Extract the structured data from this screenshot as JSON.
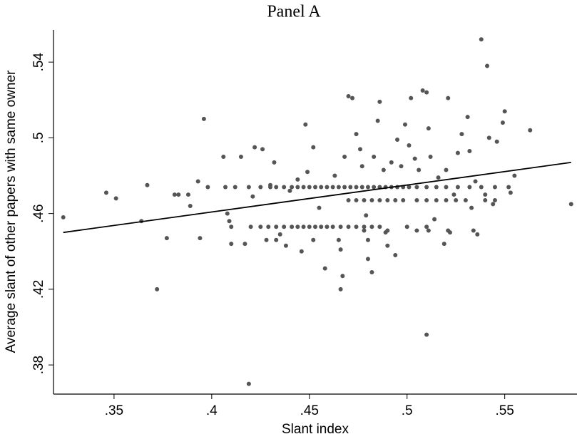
{
  "chart_data": {
    "type": "scatter",
    "title": "Panel A",
    "x_label": "Slant index",
    "y_label": "Average slant of other papers with same owner",
    "xlim": [
      0.319,
      0.587
    ],
    "ylim": [
      0.3646,
      0.557
    ],
    "xticks": [
      {
        "value": 0.35,
        "label": ".35"
      },
      {
        "value": 0.4,
        "label": ".4"
      },
      {
        "value": 0.45,
        "label": ".45"
      },
      {
        "value": 0.5,
        "label": ".5"
      },
      {
        "value": 0.55,
        "label": ".55"
      }
    ],
    "yticks": [
      {
        "value": 0.38,
        "label": ".38"
      },
      {
        "value": 0.42,
        "label": ".42"
      },
      {
        "value": 0.46,
        "label": ".46"
      },
      {
        "value": 0.5,
        "label": ".5"
      },
      {
        "value": 0.54,
        "label": ".54"
      }
    ],
    "series": [
      {
        "type": "scatter",
        "color": "#555555",
        "x": [
          0.398,
          0.407,
          0.412,
          0.419,
          0.425,
          0.43,
          0.433,
          0.437,
          0.441,
          0.444,
          0.447,
          0.45,
          0.453,
          0.456,
          0.459,
          0.462,
          0.465,
          0.468,
          0.471,
          0.474,
          0.477,
          0.48,
          0.483,
          0.486,
          0.489,
          0.492,
          0.495,
          0.498,
          0.501,
          0.505,
          0.51,
          0.515,
          0.52,
          0.526,
          0.532,
          0.538,
          0.545,
          0.552,
          0.47,
          0.474,
          0.478,
          0.482,
          0.486,
          0.49,
          0.494,
          0.498,
          0.505,
          0.51,
          0.515,
          0.52,
          0.525,
          0.53,
          0.54,
          0.545,
          0.41,
          0.42,
          0.425,
          0.429,
          0.433,
          0.437,
          0.441,
          0.444,
          0.447,
          0.45,
          0.453,
          0.456,
          0.459,
          0.462,
          0.466,
          0.47,
          0.474,
          0.478,
          0.482,
          0.486,
          0.5,
          0.51,
          0.478,
          0.49,
          0.505,
          0.511,
          0.521,
          0.534,
          0.428,
          0.433,
          0.452,
          0.465,
          0.48,
          0.324,
          0.346,
          0.351,
          0.364,
          0.367,
          0.372,
          0.377,
          0.381,
          0.383,
          0.388,
          0.389,
          0.393,
          0.394,
          0.396,
          0.406,
          0.408,
          0.409,
          0.415,
          0.417,
          0.419,
          0.421,
          0.422,
          0.426,
          0.43,
          0.432,
          0.435,
          0.438,
          0.44,
          0.444,
          0.446,
          0.449,
          0.448,
          0.452,
          0.455,
          0.458,
          0.463,
          0.466,
          0.466,
          0.467,
          0.468,
          0.47,
          0.472,
          0.474,
          0.476,
          0.477,
          0.479,
          0.48,
          0.482,
          0.483,
          0.485,
          0.486,
          0.488,
          0.489,
          0.49,
          0.492,
          0.494,
          0.495,
          0.497,
          0.499,
          0.501,
          0.502,
          0.504,
          0.506,
          0.508,
          0.51,
          0.51,
          0.511,
          0.512,
          0.514,
          0.516,
          0.519,
          0.52,
          0.521,
          0.522,
          0.524,
          0.526,
          0.528,
          0.531,
          0.532,
          0.533,
          0.535,
          0.536,
          0.538,
          0.54,
          0.541,
          0.542,
          0.544,
          0.546,
          0.549,
          0.55,
          0.553,
          0.555,
          0.563,
          0.584,
          0.41
        ],
        "values": [
          0.474,
          0.474,
          0.474,
          0.474,
          0.474,
          0.474,
          0.474,
          0.474,
          0.474,
          0.474,
          0.474,
          0.474,
          0.474,
          0.474,
          0.474,
          0.474,
          0.474,
          0.474,
          0.474,
          0.474,
          0.474,
          0.474,
          0.474,
          0.474,
          0.474,
          0.474,
          0.474,
          0.474,
          0.474,
          0.474,
          0.474,
          0.474,
          0.474,
          0.474,
          0.474,
          0.474,
          0.474,
          0.474,
          0.467,
          0.467,
          0.467,
          0.467,
          0.467,
          0.467,
          0.467,
          0.467,
          0.467,
          0.467,
          0.467,
          0.467,
          0.467,
          0.467,
          0.467,
          0.467,
          0.453,
          0.453,
          0.453,
          0.453,
          0.453,
          0.453,
          0.453,
          0.453,
          0.453,
          0.453,
          0.453,
          0.453,
          0.453,
          0.453,
          0.453,
          0.453,
          0.453,
          0.453,
          0.453,
          0.453,
          0.453,
          0.453,
          0.451,
          0.451,
          0.451,
          0.451,
          0.451,
          0.451,
          0.446,
          0.446,
          0.446,
          0.446,
          0.446,
          0.458,
          0.471,
          0.468,
          0.456,
          0.475,
          0.42,
          0.447,
          0.47,
          0.47,
          0.47,
          0.464,
          0.477,
          0.447,
          0.51,
          0.49,
          0.46,
          0.456,
          0.49,
          0.444,
          0.37,
          0.469,
          0.495,
          0.494,
          0.475,
          0.487,
          0.449,
          0.443,
          0.472,
          0.478,
          0.44,
          0.482,
          0.507,
          0.495,
          0.463,
          0.431,
          0.48,
          0.441,
          0.42,
          0.427,
          0.49,
          0.522,
          0.521,
          0.502,
          0.494,
          0.485,
          0.459,
          0.436,
          0.429,
          0.49,
          0.509,
          0.519,
          0.483,
          0.45,
          0.443,
          0.487,
          0.438,
          0.499,
          0.485,
          0.507,
          0.496,
          0.521,
          0.489,
          0.483,
          0.525,
          0.524,
          0.396,
          0.505,
          0.49,
          0.457,
          0.479,
          0.444,
          0.483,
          0.521,
          0.45,
          0.47,
          0.492,
          0.502,
          0.511,
          0.493,
          0.463,
          0.477,
          0.449,
          0.552,
          0.47,
          0.538,
          0.5,
          0.465,
          0.498,
          0.508,
          0.514,
          0.471,
          0.48,
          0.504,
          0.465,
          0.444
        ]
      },
      {
        "type": "line",
        "color": "#000000",
        "x": [
          0.324,
          0.584
        ],
        "values": [
          0.45,
          0.487
        ]
      }
    ]
  }
}
